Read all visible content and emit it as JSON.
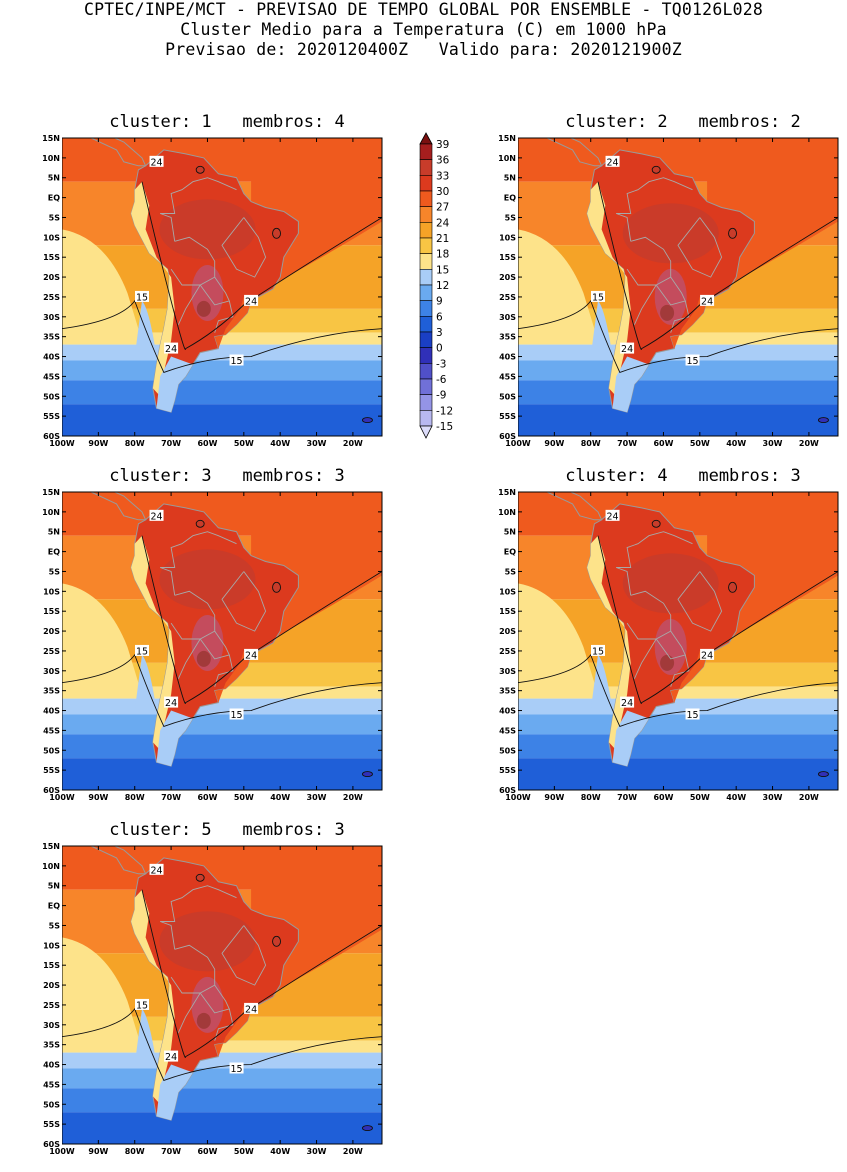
{
  "header": {
    "line1": "CPTEC/INPE/MCT - PREVISAO DE TEMPO GLOBAL POR ENSEMBLE - TQ0126L028",
    "line2": "Cluster Medio para a Temperatura (C) em 1000 hPa",
    "line3": "Previsao de: 2020120400Z   Valido para: 2020121900Z"
  },
  "panels": [
    {
      "title": "cluster: 1   membros: 4"
    },
    {
      "title": "cluster: 2   membros: 2"
    },
    {
      "title": "cluster: 3   membros: 3"
    },
    {
      "title": "cluster: 4   membros: 3"
    },
    {
      "title": "cluster: 5   membros: 3"
    }
  ],
  "map": {
    "lat_ticks": [
      "15N",
      "10N",
      "5N",
      "EQ",
      "5S",
      "10S",
      "15S",
      "20S",
      "25S",
      "30S",
      "35S",
      "40S",
      "45S",
      "50S",
      "55S",
      "60S"
    ],
    "lon_ticks": [
      "100W",
      "90W",
      "80W",
      "70W",
      "60W",
      "50W",
      "40W",
      "30W",
      "20W"
    ],
    "contour_labels": [
      "24",
      "15"
    ]
  },
  "colorbar": {
    "labels": [
      "39",
      "36",
      "33",
      "30",
      "27",
      "24",
      "21",
      "18",
      "15",
      "12",
      "9",
      "6",
      "3",
      "0",
      "-3",
      "-6",
      "-9",
      "-12",
      "-15"
    ],
    "colors": [
      "#7a1010",
      "#a51e1e",
      "#c83c2a",
      "#dc3a1e",
      "#ef5a1e",
      "#f7852a",
      "#f5a327",
      "#f8c544",
      "#fde38a",
      "#a9cdf7",
      "#6aaaf0",
      "#3d82e6",
      "#1f5fd8",
      "#1a3fc4",
      "#3030b8",
      "#5050c8",
      "#7070d8",
      "#9494e6",
      "#b8b8f0",
      "#dcdcfa"
    ]
  }
}
